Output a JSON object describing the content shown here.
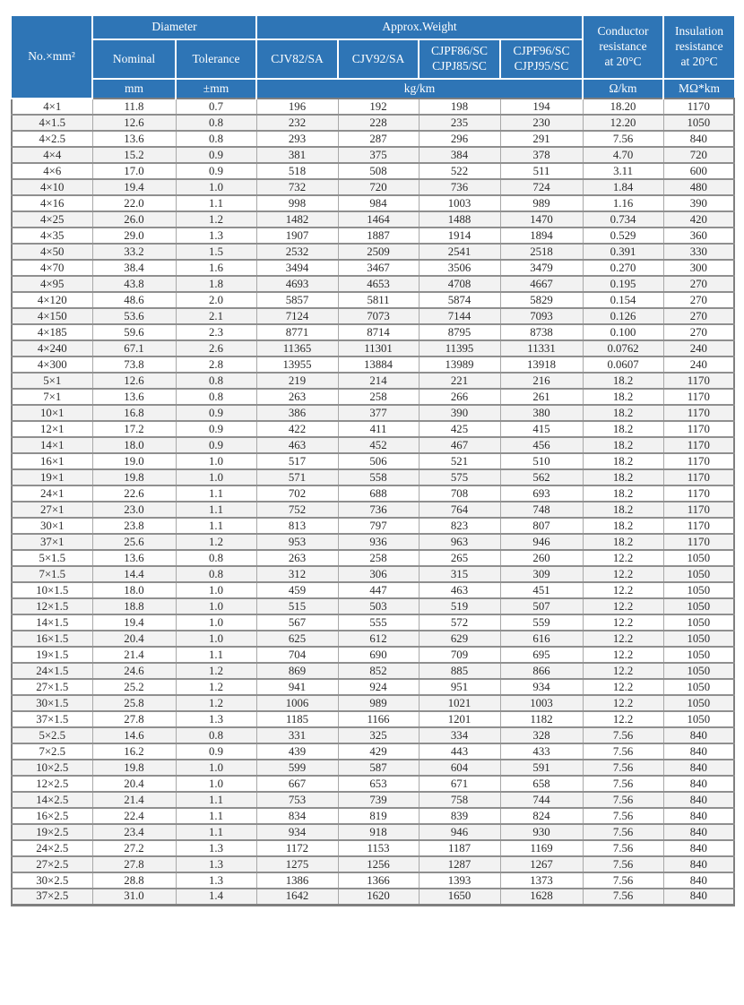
{
  "colors": {
    "header_bg": "#2e75b6",
    "header_text": "#ffffff",
    "row_stripe": "#f2f2f2",
    "body_text": "#2b2b2b",
    "grid_dark": "#7f7f7f",
    "grid_mid": "#8f8f8f",
    "grid_light": "#a8a8a8"
  },
  "table": {
    "column_keys": [
      "size",
      "nominal-diameter",
      "tolerance",
      "weight-cjv82-sa",
      "weight-cjv92-sa",
      "weight-cjpf86-sc-cjpj85-sc",
      "weight-cjpf96-sc-cjpj95-sc",
      "conductor-resistance",
      "insulation-resistance"
    ],
    "header": {
      "size_label": "No.×mm²",
      "diameter_label": "Diameter",
      "weight_label": "Approx.Weight",
      "conductor_label": "Conductor\nresistance\nat 20°C",
      "insulation_label": "Insulation\nresistance\nat 20°C",
      "nominal_label": "Nominal",
      "tolerance_label": "Tolerance",
      "models": [
        "CJV82/SA",
        "CJV92/SA",
        "CJPF86/SC\nCJPJ85/SC",
        "CJPF96/SC\nCJPJ95/SC"
      ],
      "units": {
        "mm": "mm",
        "tolerance_mm": "±mm",
        "weight": "kg/km",
        "conductor": "Ω/km",
        "insulation": "MΩ*km"
      }
    },
    "rows": [
      [
        "4×1",
        "11.8",
        "0.7",
        "196",
        "192",
        "198",
        "194",
        "18.20",
        "1170"
      ],
      [
        "4×1.5",
        "12.6",
        "0.8",
        "232",
        "228",
        "235",
        "230",
        "12.20",
        "1050"
      ],
      [
        "4×2.5",
        "13.6",
        "0.8",
        "293",
        "287",
        "296",
        "291",
        "7.56",
        "840"
      ],
      [
        "4×4",
        "15.2",
        "0.9",
        "381",
        "375",
        "384",
        "378",
        "4.70",
        "720"
      ],
      [
        "4×6",
        "17.0",
        "0.9",
        "518",
        "508",
        "522",
        "511",
        "3.11",
        "600"
      ],
      [
        "4×10",
        "19.4",
        "1.0",
        "732",
        "720",
        "736",
        "724",
        "1.84",
        "480"
      ],
      [
        "4×16",
        "22.0",
        "1.1",
        "998",
        "984",
        "1003",
        "989",
        "1.16",
        "390"
      ],
      [
        "4×25",
        "26.0",
        "1.2",
        "1482",
        "1464",
        "1488",
        "1470",
        "0.734",
        "420"
      ],
      [
        "4×35",
        "29.0",
        "1.3",
        "1907",
        "1887",
        "1914",
        "1894",
        "0.529",
        "360"
      ],
      [
        "4×50",
        "33.2",
        "1.5",
        "2532",
        "2509",
        "2541",
        "2518",
        "0.391",
        "330"
      ],
      [
        "4×70",
        "38.4",
        "1.6",
        "3494",
        "3467",
        "3506",
        "3479",
        "0.270",
        "300"
      ],
      [
        "4×95",
        "43.8",
        "1.8",
        "4693",
        "4653",
        "4708",
        "4667",
        "0.195",
        "270"
      ],
      [
        "4×120",
        "48.6",
        "2.0",
        "5857",
        "5811",
        "5874",
        "5829",
        "0.154",
        "270"
      ],
      [
        "4×150",
        "53.6",
        "2.1",
        "7124",
        "7073",
        "7144",
        "7093",
        "0.126",
        "270"
      ],
      [
        "4×185",
        "59.6",
        "2.3",
        "8771",
        "8714",
        "8795",
        "8738",
        "0.100",
        "270"
      ],
      [
        "4×240",
        "67.1",
        "2.6",
        "11365",
        "11301",
        "11395",
        "11331",
        "0.0762",
        "240"
      ],
      [
        "4×300",
        "73.8",
        "2.8",
        "13955",
        "13884",
        "13989",
        "13918",
        "0.0607",
        "240"
      ],
      [
        "5×1",
        "12.6",
        "0.8",
        "219",
        "214",
        "221",
        "216",
        "18.2",
        "1170"
      ],
      [
        "7×1",
        "13.6",
        "0.8",
        "263",
        "258",
        "266",
        "261",
        "18.2",
        "1170"
      ],
      [
        "10×1",
        "16.8",
        "0.9",
        "386",
        "377",
        "390",
        "380",
        "18.2",
        "1170"
      ],
      [
        "12×1",
        "17.2",
        "0.9",
        "422",
        "411",
        "425",
        "415",
        "18.2",
        "1170"
      ],
      [
        "14×1",
        "18.0",
        "0.9",
        "463",
        "452",
        "467",
        "456",
        "18.2",
        "1170"
      ],
      [
        "16×1",
        "19.0",
        "1.0",
        "517",
        "506",
        "521",
        "510",
        "18.2",
        "1170"
      ],
      [
        "19×1",
        "19.8",
        "1.0",
        "571",
        "558",
        "575",
        "562",
        "18.2",
        "1170"
      ],
      [
        "24×1",
        "22.6",
        "1.1",
        "702",
        "688",
        "708",
        "693",
        "18.2",
        "1170"
      ],
      [
        "27×1",
        "23.0",
        "1.1",
        "752",
        "736",
        "764",
        "748",
        "18.2",
        "1170"
      ],
      [
        "30×1",
        "23.8",
        "1.1",
        "813",
        "797",
        "823",
        "807",
        "18.2",
        "1170"
      ],
      [
        "37×1",
        "25.6",
        "1.2",
        "953",
        "936",
        "963",
        "946",
        "18.2",
        "1170"
      ],
      [
        "5×1.5",
        "13.6",
        "0.8",
        "263",
        "258",
        "265",
        "260",
        "12.2",
        "1050"
      ],
      [
        "7×1.5",
        "14.4",
        "0.8",
        "312",
        "306",
        "315",
        "309",
        "12.2",
        "1050"
      ],
      [
        "10×1.5",
        "18.0",
        "1.0",
        "459",
        "447",
        "463",
        "451",
        "12.2",
        "1050"
      ],
      [
        "12×1.5",
        "18.8",
        "1.0",
        "515",
        "503",
        "519",
        "507",
        "12.2",
        "1050"
      ],
      [
        "14×1.5",
        "19.4",
        "1.0",
        "567",
        "555",
        "572",
        "559",
        "12.2",
        "1050"
      ],
      [
        "16×1.5",
        "20.4",
        "1.0",
        "625",
        "612",
        "629",
        "616",
        "12.2",
        "1050"
      ],
      [
        "19×1.5",
        "21.4",
        "1.1",
        "704",
        "690",
        "709",
        "695",
        "12.2",
        "1050"
      ],
      [
        "24×1.5",
        "24.6",
        "1.2",
        "869",
        "852",
        "885",
        "866",
        "12.2",
        "1050"
      ],
      [
        "27×1.5",
        "25.2",
        "1.2",
        "941",
        "924",
        "951",
        "934",
        "12.2",
        "1050"
      ],
      [
        "30×1.5",
        "25.8",
        "1.2",
        "1006",
        "989",
        "1021",
        "1003",
        "12.2",
        "1050"
      ],
      [
        "37×1.5",
        "27.8",
        "1.3",
        "1185",
        "1166",
        "1201",
        "1182",
        "12.2",
        "1050"
      ],
      [
        "5×2.5",
        "14.6",
        "0.8",
        "331",
        "325",
        "334",
        "328",
        "7.56",
        "840"
      ],
      [
        "7×2.5",
        "16.2",
        "0.9",
        "439",
        "429",
        "443",
        "433",
        "7.56",
        "840"
      ],
      [
        "10×2.5",
        "19.8",
        "1.0",
        "599",
        "587",
        "604",
        "591",
        "7.56",
        "840"
      ],
      [
        "12×2.5",
        "20.4",
        "1.0",
        "667",
        "653",
        "671",
        "658",
        "7.56",
        "840"
      ],
      [
        "14×2.5",
        "21.4",
        "1.1",
        "753",
        "739",
        "758",
        "744",
        "7.56",
        "840"
      ],
      [
        "16×2.5",
        "22.4",
        "1.1",
        "834",
        "819",
        "839",
        "824",
        "7.56",
        "840"
      ],
      [
        "19×2.5",
        "23.4",
        "1.1",
        "934",
        "918",
        "946",
        "930",
        "7.56",
        "840"
      ],
      [
        "24×2.5",
        "27.2",
        "1.3",
        "1172",
        "1153",
        "1187",
        "1169",
        "7.56",
        "840"
      ],
      [
        "27×2.5",
        "27.8",
        "1.3",
        "1275",
        "1256",
        "1287",
        "1267",
        "7.56",
        "840"
      ],
      [
        "30×2.5",
        "28.8",
        "1.3",
        "1386",
        "1366",
        "1393",
        "1373",
        "7.56",
        "840"
      ],
      [
        "37×2.5",
        "31.0",
        "1.4",
        "1642",
        "1620",
        "1650",
        "1628",
        "7.56",
        "840"
      ]
    ]
  }
}
